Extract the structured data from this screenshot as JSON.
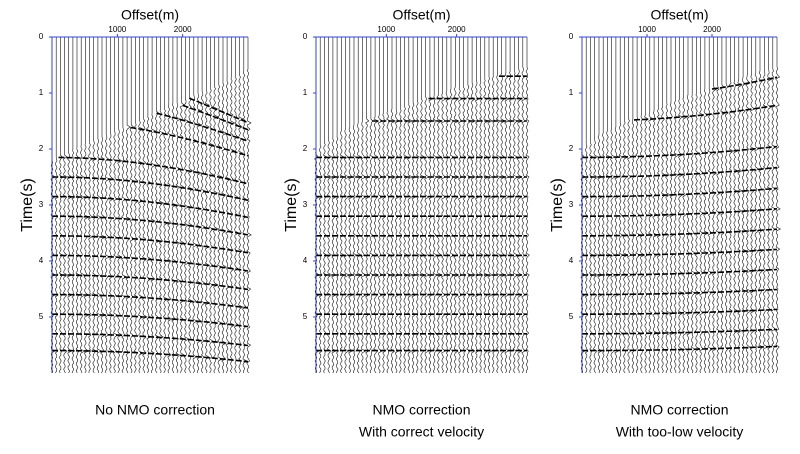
{
  "chart_data": [
    {
      "type": "wiggle",
      "xlabel": "Offset(m)",
      "ylabel": "Time(s)",
      "xlim": [
        0,
        3000
      ],
      "xticks": [
        1000,
        2000
      ],
      "ylim": [
        0,
        6
      ],
      "yticks": [
        0,
        1,
        2,
        3,
        4,
        5
      ],
      "caption": [
        "No NMO correction"
      ],
      "moveout": "hyperbolic"
    },
    {
      "type": "wiggle",
      "xlabel": "Offset(m)",
      "ylabel": "Time(s)",
      "xlim": [
        0,
        3000
      ],
      "xticks": [
        1000,
        2000
      ],
      "ylim": [
        0,
        6
      ],
      "yticks": [
        0,
        1,
        2,
        3,
        4,
        5
      ],
      "caption": [
        "NMO correction",
        "With correct velocity"
      ],
      "moveout": "flat"
    },
    {
      "type": "wiggle",
      "xlabel": "Offset(m)",
      "ylabel": "Time(s)",
      "xlim": [
        0,
        3000
      ],
      "xticks": [
        1000,
        2000
      ],
      "ylim": [
        0,
        6
      ],
      "yticks": [
        0,
        1,
        2,
        3,
        4,
        5
      ],
      "caption": [
        "NMO correction",
        "With too-low velocity"
      ],
      "moveout": "over"
    }
  ]
}
